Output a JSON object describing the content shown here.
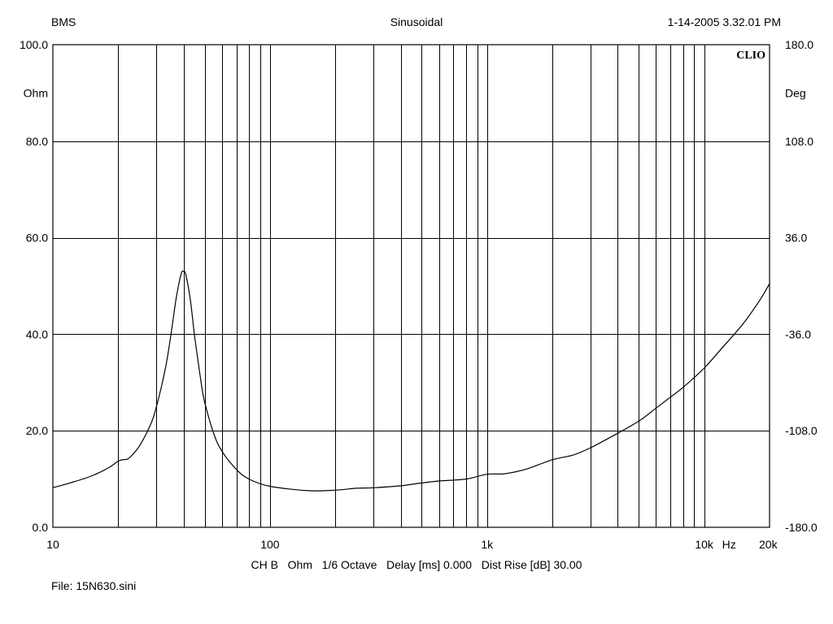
{
  "header": {
    "left": "BMS",
    "center": "Sinusoidal",
    "right": "1-14-2005 3.32.01 PM"
  },
  "footer": {
    "settings": "CH B   Ohm   1/6 Octave   Delay [ms] 0.000   Dist Rise [dB] 30.00",
    "file": "File: 15N630.sini"
  },
  "logo_text": "CLIO",
  "chart_data": {
    "type": "line",
    "title": "",
    "x_scale": "log",
    "xlim": [
      10,
      20000
    ],
    "ylim": [
      0,
      100
    ],
    "y2lim": [
      -180,
      180
    ],
    "grid": true,
    "legend": "none",
    "x_tick_labels": [
      {
        "value": 10,
        "label": "10"
      },
      {
        "value": 100,
        "label": "100"
      },
      {
        "value": 1000,
        "label": "1k"
      },
      {
        "value": 10000,
        "label": "10k"
      },
      {
        "value": 20000,
        "label": "20k"
      }
    ],
    "x_unit_label": "Hz",
    "y_left_unit": "Ohm",
    "y_left_ticks": [
      "0.0",
      "20.0",
      "40.0",
      "60.0",
      "80.0",
      "100.0"
    ],
    "y_right_unit": "Deg",
    "y_right_ticks": [
      "-180.0",
      "-108.0",
      "-36.0",
      "36.0",
      "108.0",
      "180.0"
    ],
    "line_color": "#000000",
    "series": [
      {
        "x": [
          10,
          12,
          15,
          18,
          20,
          21,
          22,
          23,
          25,
          28,
          30,
          33,
          35,
          37,
          39,
          40,
          41,
          43,
          45,
          48,
          50,
          55,
          60,
          70,
          80,
          100,
          150,
          200,
          250,
          300,
          400,
          500,
          600,
          800,
          1000,
          1200,
          1500,
          2000,
          2500,
          3000,
          4000,
          5000,
          6000,
          7000,
          8000,
          10000,
          12000,
          15000,
          18000,
          20000
        ],
        "y": [
          8.2,
          9.2,
          10.6,
          12.3,
          13.7,
          14.0,
          14.1,
          14.8,
          16.8,
          21.0,
          25.0,
          33.0,
          40.0,
          47.5,
          52.5,
          53.0,
          52.3,
          47.0,
          39.5,
          30.5,
          26.0,
          19.5,
          15.8,
          12.0,
          10.0,
          8.5,
          7.6,
          7.7,
          8.1,
          8.2,
          8.6,
          9.2,
          9.6,
          10.0,
          11.0,
          11.1,
          12.0,
          14.0,
          15.0,
          16.5,
          19.5,
          22.0,
          24.7,
          27.0,
          29.0,
          33.0,
          37.0,
          42.0,
          47.0,
          50.5
        ]
      }
    ]
  }
}
